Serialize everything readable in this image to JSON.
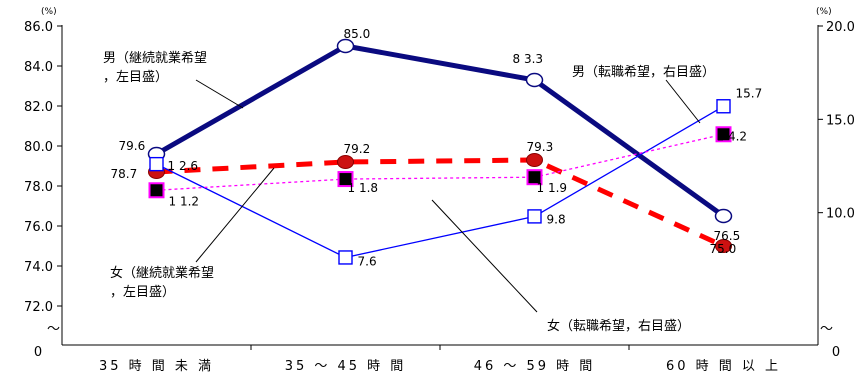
{
  "chart_data": {
    "type": "line",
    "categories": [
      "35 時 間 未 満",
      "35 ～ 45  時 間",
      "46 ～ 59  時 間",
      "60 時 間 以 上"
    ],
    "left_axis": {
      "unit": "(%)",
      "ylim": [
        72.0,
        86.0
      ],
      "ticks": [
        "72.0",
        "74.0",
        "76.0",
        "78.0",
        "80.0",
        "82.0",
        "84.0",
        "86.0"
      ],
      "zero_label": "0",
      "break_mark": "～"
    },
    "right_axis": {
      "unit": "(%)",
      "ylim": [
        5.0,
        20.0
      ],
      "ticks": [
        "10.0",
        "15.0",
        "20.0"
      ],
      "zero_label": "0",
      "break_mark": "～"
    },
    "series": [
      {
        "name": "男（継続就業希望，左目盛）",
        "label_lines": [
          "男（継続就業希望",
          "，左目盛）"
        ],
        "axis": "left",
        "values": [
          79.6,
          85.0,
          83.3,
          76.5
        ],
        "labels": [
          "79.6",
          "85.0",
          "8 3.3",
          "76.5"
        ],
        "color": "#0a0a80",
        "marker": "open-circle"
      },
      {
        "name": "女（継続就業希望，左目盛）",
        "label_lines": [
          "女（継続就業希望",
          "，左目盛）"
        ],
        "axis": "left",
        "values": [
          78.7,
          79.2,
          79.3,
          75.0
        ],
        "labels": [
          "78.7",
          "79.2",
          "79.3",
          "75.0"
        ],
        "color": "#ff0000",
        "marker": "filled-circle"
      },
      {
        "name": "男（転職希望，右目盛）",
        "label_lines": [
          "男（転職希望，右目盛）"
        ],
        "axis": "right",
        "values": [
          12.6,
          7.6,
          9.8,
          15.7
        ],
        "labels": [
          "1 2.6",
          "7.6",
          "9.8",
          "15.7"
        ],
        "color": "#0000ff",
        "marker": "open-square"
      },
      {
        "name": "女（転職希望，右目盛）",
        "label_lines": [
          "女（転職希望，右目盛）"
        ],
        "axis": "right",
        "values": [
          11.2,
          11.8,
          11.9,
          14.2
        ],
        "labels": [
          "1 1.2",
          "1 1.8",
          "1 1.9",
          "1 4.2"
        ],
        "color": "#ff00ff",
        "marker": "filled-square"
      }
    ],
    "grid": false,
    "legend": "inline callouts"
  }
}
